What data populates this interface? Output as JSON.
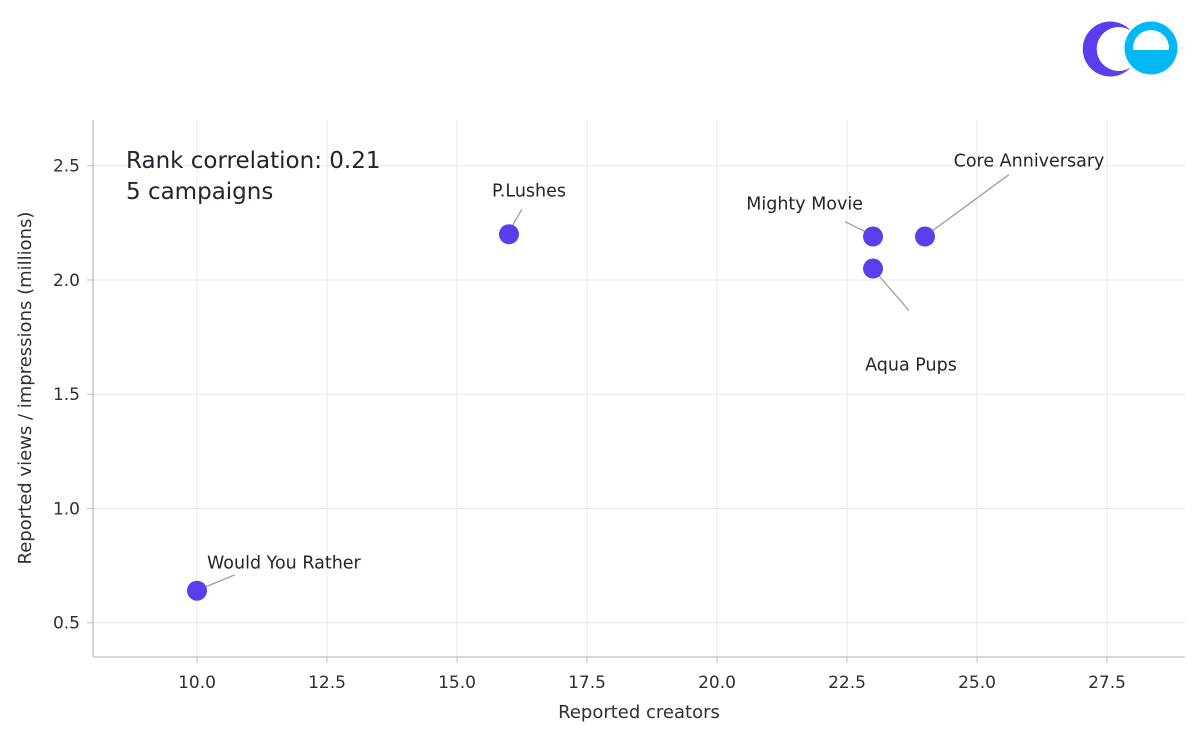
{
  "chart_data": {
    "type": "scatter",
    "xlabel": "Reported creators",
    "ylabel": "Reported views / impressions (millions)",
    "xlim": [
      8.0,
      29.0
    ],
    "ylim": [
      0.35,
      2.7
    ],
    "xticks": [
      10.0,
      12.5,
      15.0,
      17.5,
      20.0,
      22.5,
      25.0,
      27.5
    ],
    "xtick_labels": [
      "10.0",
      "12.5",
      "15.0",
      "17.5",
      "20.0",
      "22.5",
      "25.0",
      "27.5"
    ],
    "yticks": [
      0.5,
      1.0,
      1.5,
      2.0,
      2.5
    ],
    "ytick_labels": [
      "0.5",
      "1.0",
      "1.5",
      "2.0",
      "2.5"
    ],
    "grid": true,
    "annotations": [
      "Rank correlation: 0.21",
      "5 campaigns"
    ],
    "points": [
      {
        "label": "Would You Rather",
        "x": 10,
        "y": 0.64,
        "label_placement": "above-right"
      },
      {
        "label": "P.Lushes",
        "x": 16,
        "y": 2.2,
        "label_placement": "above"
      },
      {
        "label": "Mighty Movie",
        "x": 23,
        "y": 2.19,
        "label_placement": "above-left"
      },
      {
        "label": "Aqua Pups",
        "x": 23,
        "y": 2.05,
        "label_placement": "below-right"
      },
      {
        "label": "Core Anniversary",
        "x": 24,
        "y": 2.19,
        "label_placement": "above-right"
      }
    ],
    "point_color": "#5b3ded"
  },
  "logo": {
    "name": "brand-logo",
    "colors": [
      "#5b3ded",
      "#00b8f5"
    ]
  }
}
